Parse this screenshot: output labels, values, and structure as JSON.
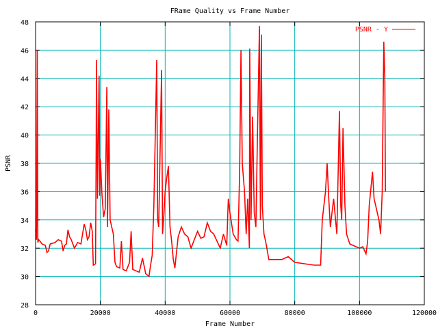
{
  "chart_data": {
    "type": "line",
    "title": "FRame Quality vs Frame Number",
    "xlabel": "Frame Number",
    "ylabel": "PSNR",
    "xlim": [
      0,
      120000
    ],
    "ylim": [
      28,
      48
    ],
    "xticks": [
      0,
      20000,
      40000,
      60000,
      80000,
      100000,
      120000
    ],
    "xtick_labels": [
      "0",
      "20000",
      "40000",
      "60000",
      "80000",
      "100000",
      "120000"
    ],
    "yticks": [
      28,
      30,
      32,
      34,
      36,
      38,
      40,
      42,
      44,
      46,
      48
    ],
    "ytick_labels": [
      "28",
      "30",
      "32",
      "34",
      "36",
      "38",
      "40",
      "42",
      "44",
      "46",
      "48"
    ],
    "grid": true,
    "legend_position": "top-right",
    "series": [
      {
        "name": "PSNR - Y",
        "color": "#ff0000",
        "points": [
          [
            0,
            33.3
          ],
          [
            300,
            32.6
          ],
          [
            500,
            46.0
          ],
          [
            700,
            32.4
          ],
          [
            1000,
            32.6
          ],
          [
            2000,
            32.3
          ],
          [
            3000,
            32.2
          ],
          [
            3500,
            31.7
          ],
          [
            4000,
            31.8
          ],
          [
            4500,
            32.3
          ],
          [
            6000,
            32.4
          ],
          [
            7000,
            32.6
          ],
          [
            8000,
            32.5
          ],
          [
            8500,
            31.8
          ],
          [
            9000,
            32.2
          ],
          [
            9500,
            32.3
          ],
          [
            10000,
            33.3
          ],
          [
            10500,
            32.8
          ],
          [
            11000,
            32.6
          ],
          [
            12000,
            32.0
          ],
          [
            13000,
            32.4
          ],
          [
            14000,
            32.3
          ],
          [
            15000,
            33.7
          ],
          [
            15500,
            33.3
          ],
          [
            16000,
            32.6
          ],
          [
            16500,
            32.8
          ],
          [
            17000,
            33.8
          ],
          [
            17500,
            33.2
          ],
          [
            17800,
            30.8
          ],
          [
            18500,
            30.9
          ],
          [
            18700,
            39.0
          ],
          [
            18800,
            45.3
          ],
          [
            19100,
            35.5
          ],
          [
            19600,
            44.2
          ],
          [
            19800,
            35.7
          ],
          [
            20000,
            38.3
          ],
          [
            20500,
            35.8
          ],
          [
            21000,
            34.2
          ],
          [
            21500,
            34.8
          ],
          [
            22000,
            43.4
          ],
          [
            22200,
            33.5
          ],
          [
            22600,
            41.8
          ],
          [
            23000,
            34.0
          ],
          [
            24000,
            33.0
          ],
          [
            24500,
            31.0
          ],
          [
            25000,
            30.7
          ],
          [
            26000,
            30.6
          ],
          [
            26500,
            32.5
          ],
          [
            27000,
            30.5
          ],
          [
            28000,
            30.4
          ],
          [
            29000,
            31.0
          ],
          [
            29500,
            33.2
          ],
          [
            30000,
            30.5
          ],
          [
            31000,
            30.4
          ],
          [
            32000,
            30.3
          ],
          [
            33000,
            31.3
          ],
          [
            34000,
            30.2
          ],
          [
            35000,
            30.0
          ],
          [
            35500,
            30.8
          ],
          [
            36000,
            31.5
          ],
          [
            36500,
            35.0
          ],
          [
            37000,
            40.5
          ],
          [
            37400,
            45.3
          ],
          [
            37700,
            34.0
          ],
          [
            38000,
            33.5
          ],
          [
            38900,
            44.6
          ],
          [
            39200,
            33.0
          ],
          [
            39500,
            34.0
          ],
          [
            40000,
            36.0
          ],
          [
            40500,
            37.0
          ],
          [
            41000,
            37.8
          ],
          [
            41500,
            33.5
          ],
          [
            42000,
            32.5
          ],
          [
            42500,
            31.2
          ],
          [
            43000,
            30.6
          ],
          [
            44000,
            32.8
          ],
          [
            45000,
            33.5
          ],
          [
            46000,
            33.0
          ],
          [
            47000,
            32.8
          ],
          [
            48000,
            32.0
          ],
          [
            49000,
            32.6
          ],
          [
            50000,
            33.2
          ],
          [
            51000,
            32.7
          ],
          [
            52000,
            32.8
          ],
          [
            53000,
            33.8
          ],
          [
            54000,
            33.2
          ],
          [
            55000,
            33.0
          ],
          [
            56000,
            32.5
          ],
          [
            57000,
            32.0
          ],
          [
            58000,
            33.0
          ],
          [
            59000,
            32.2
          ],
          [
            59500,
            35.5
          ],
          [
            60000,
            34.5
          ],
          [
            61000,
            33.0
          ],
          [
            62000,
            32.6
          ],
          [
            62500,
            32.5
          ],
          [
            63000,
            37.5
          ],
          [
            63400,
            46.0
          ],
          [
            63800,
            38.0
          ],
          [
            64500,
            36.0
          ],
          [
            65000,
            33.0
          ],
          [
            65500,
            35.5
          ],
          [
            66000,
            32.0
          ],
          [
            66100,
            46.1
          ],
          [
            66500,
            34.0
          ],
          [
            67000,
            41.3
          ],
          [
            67500,
            34.5
          ],
          [
            68000,
            33.5
          ],
          [
            68500,
            40.0
          ],
          [
            69100,
            47.7
          ],
          [
            69400,
            34.0
          ],
          [
            69700,
            47.1
          ],
          [
            70000,
            35.0
          ],
          [
            70500,
            33.0
          ],
          [
            71000,
            32.5
          ],
          [
            72000,
            31.2
          ],
          [
            74000,
            31.2
          ],
          [
            76000,
            31.2
          ],
          [
            78000,
            31.4
          ],
          [
            80000,
            31.0
          ],
          [
            83000,
            30.9
          ],
          [
            86000,
            30.8
          ],
          [
            88000,
            30.8
          ],
          [
            88500,
            34.0
          ],
          [
            89500,
            36.0
          ],
          [
            90000,
            38.0
          ],
          [
            90500,
            35.5
          ],
          [
            91000,
            33.5
          ],
          [
            92000,
            35.5
          ],
          [
            93000,
            33.0
          ],
          [
            93800,
            41.7
          ],
          [
            94200,
            35.0
          ],
          [
            94500,
            34.0
          ],
          [
            94900,
            40.5
          ],
          [
            95500,
            35.0
          ],
          [
            96000,
            33.0
          ],
          [
            97000,
            32.3
          ],
          [
            98000,
            32.2
          ],
          [
            100000,
            32.0
          ],
          [
            101000,
            32.1
          ],
          [
            102000,
            31.6
          ],
          [
            102500,
            32.5
          ],
          [
            103000,
            35.0
          ],
          [
            104000,
            37.4
          ],
          [
            104500,
            35.5
          ],
          [
            105000,
            35.0
          ],
          [
            106000,
            34.0
          ],
          [
            106500,
            33.0
          ],
          [
            107000,
            36.0
          ],
          [
            107500,
            46.6
          ],
          [
            107800,
            44.0
          ],
          [
            108000,
            36.0
          ]
        ]
      }
    ]
  }
}
